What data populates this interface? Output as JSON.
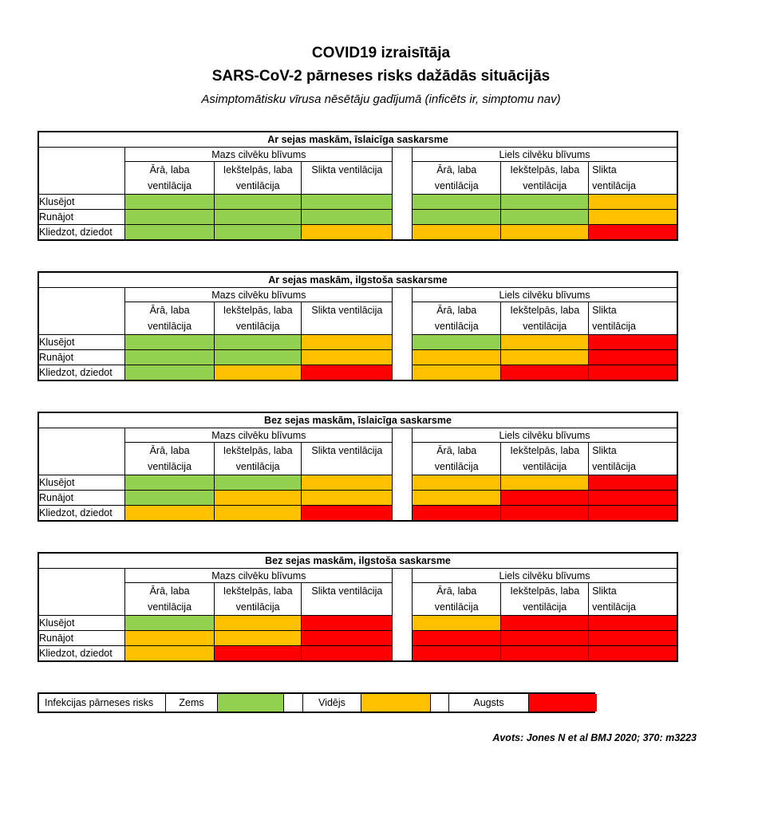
{
  "page": {
    "title_line1": "COVID19 izraisītāja",
    "title_line2": "SARS-CoV-2 pārneses risks dažādās situācijās",
    "subtitle": "Asimptomātisku vīrusa nēsētāju gadījumā (inficēts ir, simptomu nav)",
    "source": "Avots: Jones N et al BMJ 2020; 370: m3223"
  },
  "shared": {
    "row_labels": [
      "Klusējot",
      "Runājot",
      "Kliedzot, dziedot"
    ],
    "group_headers": [
      "Mazs cilvēku blīvums",
      "Liels cilvēku blīvums"
    ],
    "column_headers_left": [
      [
        "Ārā, laba",
        "ventilācija"
      ],
      [
        "Iekštelpās, laba",
        "ventilācija"
      ],
      [
        "Slikta ventilācija",
        ""
      ]
    ],
    "column_headers_right": [
      [
        "Ārā, laba",
        "ventilācija"
      ],
      [
        "Iekštelpās, laba",
        "ventilācija"
      ],
      [
        "Slikta",
        "ventilācija"
      ]
    ]
  },
  "legend": {
    "label": "Infekcijas pārneses risks",
    "items": [
      {
        "label": "Zems",
        "level": "low"
      },
      {
        "label": "Vidējs",
        "level": "medium"
      },
      {
        "label": "Augsts",
        "level": "high"
      }
    ],
    "colors": {
      "low": "#92D050",
      "medium": "#FFC000",
      "high": "#FF0000"
    }
  },
  "chart_data": {
    "type": "heatmap",
    "title": "COVID19 izraisītāja SARS-CoV-2 pārneses risks dažādās situācijās",
    "subtitle": "Asimptomātisku vīrusa nēsētāju gadījumā (inficēts ir, simptomu nav)",
    "row_categories": [
      "Klusējot",
      "Runājot",
      "Kliedzot, dziedot"
    ],
    "column_groups": [
      "Mazs cilvēku blīvums",
      "Liels cilvēku blīvums"
    ],
    "column_categories": [
      "Ārā, laba ventilācija",
      "Iekštelpās, laba ventilācija",
      "Slikta ventilācija"
    ],
    "risk_levels": {
      "low": "Zems",
      "medium": "Vidējs",
      "high": "Augsts"
    },
    "matrices": [
      {
        "title": "Ar sejas maskām, īslaicīga saskarsme",
        "mazs": [
          [
            "low",
            "low",
            "low"
          ],
          [
            "low",
            "low",
            "low"
          ],
          [
            "low",
            "low",
            "medium"
          ]
        ],
        "liels": [
          [
            "low",
            "low",
            "medium"
          ],
          [
            "low",
            "low",
            "medium"
          ],
          [
            "medium",
            "medium",
            "high"
          ]
        ]
      },
      {
        "title": "Ar sejas maskām, ilgstoša saskarsme",
        "mazs": [
          [
            "low",
            "low",
            "medium"
          ],
          [
            "low",
            "low",
            "medium"
          ],
          [
            "low",
            "medium",
            "high"
          ]
        ],
        "liels": [
          [
            "low",
            "medium",
            "high"
          ],
          [
            "medium",
            "medium",
            "high"
          ],
          [
            "medium",
            "high",
            "high"
          ]
        ]
      },
      {
        "title": "Bez sejas maskām, īslaicīga saskarsme",
        "mazs": [
          [
            "low",
            "low",
            "medium"
          ],
          [
            "low",
            "medium",
            "medium"
          ],
          [
            "medium",
            "medium",
            "high"
          ]
        ],
        "liels": [
          [
            "medium",
            "medium",
            "high"
          ],
          [
            "medium",
            "high",
            "high"
          ],
          [
            "high",
            "high",
            "high"
          ]
        ]
      },
      {
        "title": "Bez sejas maskām, ilgstoša saskarsme",
        "mazs": [
          [
            "low",
            "medium",
            "high"
          ],
          [
            "medium",
            "medium",
            "high"
          ],
          [
            "medium",
            "high",
            "high"
          ]
        ],
        "liels": [
          [
            "medium",
            "high",
            "high"
          ],
          [
            "high",
            "high",
            "high"
          ],
          [
            "high",
            "high",
            "high"
          ]
        ]
      }
    ],
    "source": "Avots: Jones N et al BMJ 2020; 370: m3223"
  }
}
